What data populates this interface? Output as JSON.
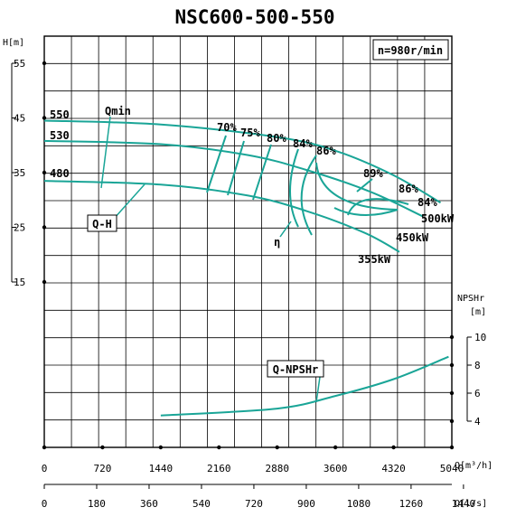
{
  "chart_data": {
    "type": "line",
    "title": "NSC600-500-550",
    "speed_label": "n=980r/min",
    "y_left": {
      "label": "H[m]",
      "ticks": [
        "55",
        "45",
        "35",
        "25",
        "15"
      ],
      "ticks_values": [
        55,
        45,
        35,
        25,
        15
      ],
      "ylim": [
        -15,
        60
      ]
    },
    "y_right": {
      "label_line1": "NPSHr",
      "label_line2": "[m]",
      "ticks": [
        "10",
        "8",
        "6",
        "4"
      ],
      "ticks_values": [
        10,
        8,
        6,
        4
      ]
    },
    "x_m3h": {
      "label": "Q[m³/h]",
      "ticks": [
        "0",
        "720",
        "1440",
        "2160",
        "2880",
        "3600",
        "4320",
        "5040"
      ],
      "ticks_values": [
        0,
        720,
        1440,
        2160,
        2880,
        3600,
        4320,
        5040
      ],
      "xlim": [
        0,
        5040
      ]
    },
    "x_ls": {
      "label": "Q[l/s]",
      "ticks": [
        "0",
        "180",
        "360",
        "540",
        "720",
        "900",
        "1080",
        "1260",
        "1440"
      ],
      "ticks_values": [
        0,
        180,
        360,
        540,
        720,
        900,
        1080,
        1260,
        1440
      ]
    },
    "grid": true,
    "series": [
      {
        "name": "550",
        "kind": "Q-H",
        "x": [
          0,
          1440,
          2880,
          3600,
          4320,
          4900
        ],
        "y": [
          44.5,
          43.8,
          41.5,
          39,
          34.5,
          29.5
        ]
      },
      {
        "name": "530",
        "kind": "Q-H",
        "x": [
          0,
          1440,
          2520,
          3240,
          4032,
          4680
        ],
        "y": [
          40.8,
          40.2,
          38.2,
          35.5,
          31.5,
          27
        ]
      },
      {
        "name": "480",
        "kind": "Q-H",
        "x": [
          0,
          1440,
          2520,
          3240,
          3960,
          4392
        ],
        "y": [
          33.5,
          32.8,
          30.8,
          28,
          24,
          20.5
        ]
      },
      {
        "name": "NPSHr",
        "kind": "Q-NPSHr",
        "x": [
          1440,
          2880,
          3600,
          4320,
          5000
        ],
        "y": [
          4.4,
          4.9,
          5.8,
          7,
          8.6
        ]
      }
    ],
    "efficiency_labels": [
      "70%",
      "75%",
      "80%",
      "84%",
      "86%",
      "89%",
      "86%",
      "84%"
    ],
    "power_labels": [
      "500kW",
      "450kW",
      "355kW"
    ],
    "curve_labels": {
      "qmin": "Qmin",
      "qh": "Q-H",
      "eta": "η",
      "qnpsh": "Q-NPSHr"
    }
  }
}
